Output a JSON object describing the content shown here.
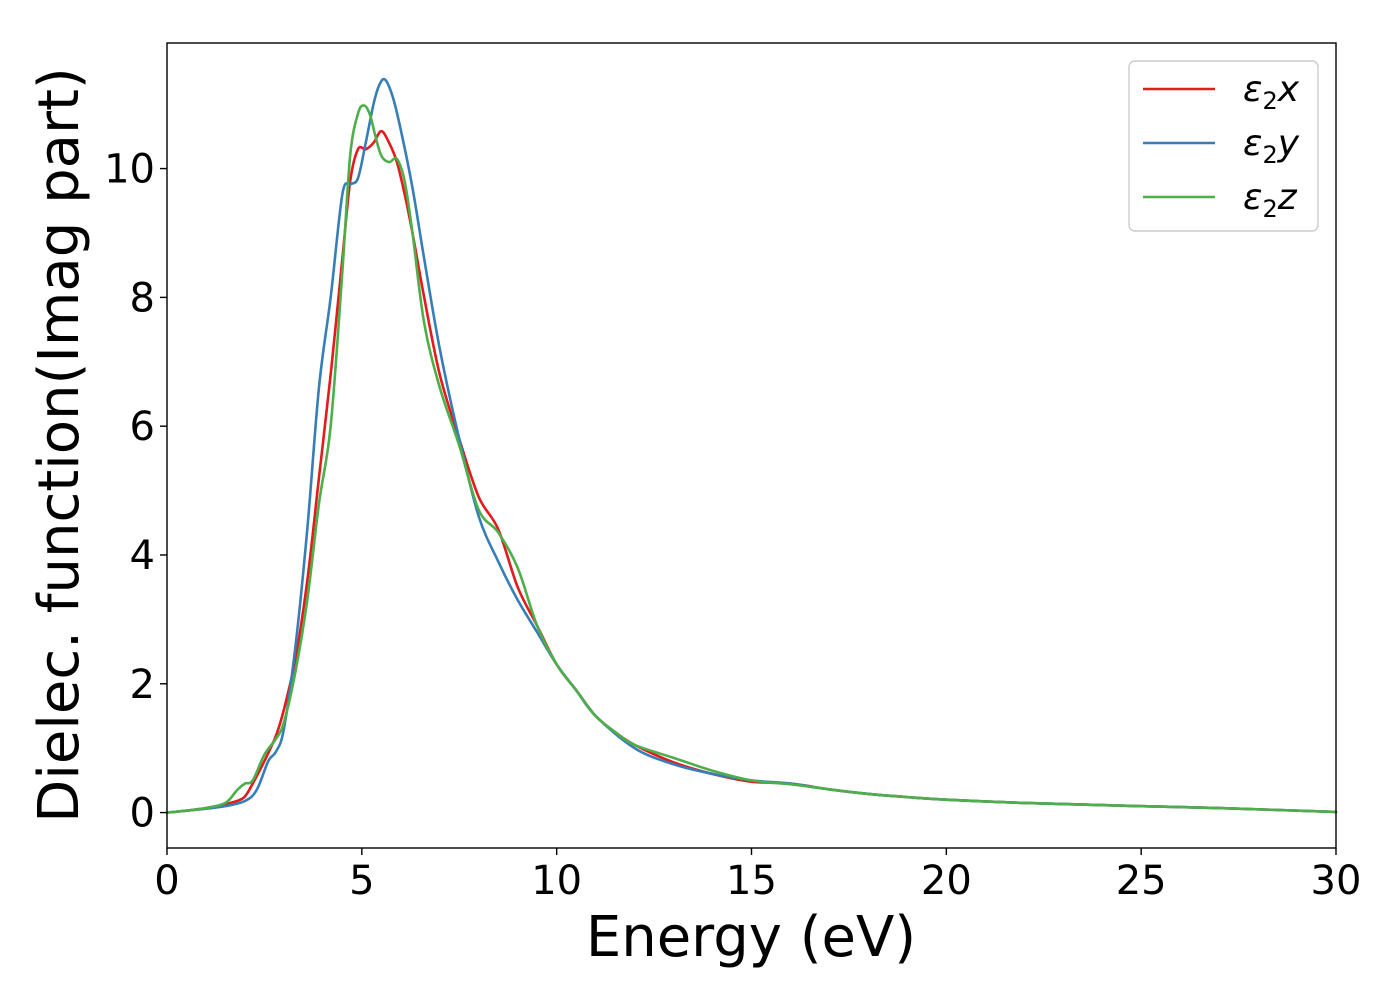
{
  "chart_data": {
    "type": "line",
    "xlabel": "Energy (eV)",
    "ylabel": "Dielec. function(Imag part)",
    "xlim": [
      0,
      30
    ],
    "ylim": [
      -0.55,
      11.95
    ],
    "xticks": [
      0,
      5,
      10,
      15,
      20,
      25,
      30
    ],
    "yticks": [
      0,
      2,
      4,
      6,
      8,
      10
    ],
    "grid": false,
    "legend_position": "top-right",
    "series": [
      {
        "name": "ε₂x",
        "legend": {
          "base": "ε",
          "sub": "2",
          "var": "x"
        },
        "color": "#e41a1c",
        "x": [
          0,
          0.5,
          1,
          1.5,
          1.8,
          2,
          2.2,
          2.5,
          2.8,
          3,
          3.3,
          3.6,
          3.9,
          4.2,
          4.5,
          4.7,
          4.9,
          5.1,
          5.3,
          5.5,
          5.7,
          5.9,
          6.1,
          6.3,
          6.6,
          7,
          7.5,
          8,
          8.5,
          9,
          9.5,
          10,
          10.5,
          11,
          11.5,
          12,
          13,
          14,
          15,
          16,
          17,
          18,
          19,
          20,
          22,
          25,
          27,
          30
        ],
        "y": [
          0,
          0.03,
          0.07,
          0.13,
          0.18,
          0.25,
          0.45,
          0.8,
          1.2,
          1.6,
          2.4,
          3.6,
          5.2,
          6.8,
          8.6,
          9.8,
          10.3,
          10.3,
          10.4,
          10.58,
          10.4,
          10.1,
          9.6,
          9.0,
          8.0,
          6.8,
          5.8,
          4.9,
          4.4,
          3.5,
          2.9,
          2.3,
          1.9,
          1.5,
          1.25,
          1.05,
          0.78,
          0.6,
          0.48,
          0.45,
          0.36,
          0.29,
          0.24,
          0.2,
          0.15,
          0.1,
          0.07,
          0.01
        ]
      },
      {
        "name": "ε₂y",
        "legend": {
          "base": "ε",
          "sub": "2",
          "var": "y"
        },
        "color": "#377eb8",
        "x": [
          0,
          0.5,
          1,
          1.5,
          2,
          2.3,
          2.6,
          2.8,
          3,
          3.3,
          3.6,
          3.9,
          4.2,
          4.5,
          4.7,
          4.9,
          5.1,
          5.3,
          5.45,
          5.6,
          5.8,
          6,
          6.3,
          6.6,
          7,
          7.5,
          8,
          8.5,
          9,
          9.5,
          10,
          10.5,
          11,
          12,
          13,
          14,
          15,
          16,
          17,
          18,
          19,
          20,
          22,
          25,
          27,
          30
        ],
        "y": [
          0,
          0.03,
          0.06,
          0.1,
          0.18,
          0.35,
          0.8,
          0.95,
          1.3,
          2.6,
          4.4,
          6.6,
          8.0,
          9.6,
          9.75,
          9.85,
          10.4,
          11.0,
          11.3,
          11.38,
          11.1,
          10.6,
          9.7,
          8.6,
          7.2,
          5.8,
          4.6,
          3.9,
          3.3,
          2.8,
          2.3,
          1.9,
          1.5,
          1.0,
          0.75,
          0.6,
          0.5,
          0.45,
          0.36,
          0.29,
          0.24,
          0.2,
          0.15,
          0.1,
          0.07,
          0.01
        ]
      },
      {
        "name": "ε₂z",
        "legend": {
          "base": "ε",
          "sub": "2",
          "var": "z"
        },
        "color": "#4daf4a",
        "x": [
          0,
          0.5,
          1,
          1.5,
          1.8,
          2,
          2.2,
          2.5,
          2.8,
          3,
          3.3,
          3.6,
          3.9,
          4.2,
          4.5,
          4.7,
          4.9,
          5.05,
          5.2,
          5.35,
          5.5,
          5.7,
          5.9,
          6.1,
          6.3,
          6.6,
          7,
          7.5,
          8,
          8.5,
          9,
          9.5,
          10,
          10.5,
          11,
          11.5,
          12,
          13,
          14,
          15,
          16,
          17,
          18,
          19,
          20,
          22,
          25,
          27,
          30
        ],
        "y": [
          0,
          0.03,
          0.07,
          0.15,
          0.35,
          0.45,
          0.5,
          0.9,
          1.15,
          1.4,
          2.2,
          3.3,
          4.8,
          6.0,
          8.4,
          10.2,
          10.85,
          10.98,
          10.85,
          10.5,
          10.2,
          10.1,
          10.15,
          9.8,
          9.0,
          7.6,
          6.6,
          5.7,
          4.7,
          4.35,
          3.8,
          2.9,
          2.3,
          1.9,
          1.5,
          1.25,
          1.05,
          0.85,
          0.65,
          0.5,
          0.44,
          0.36,
          0.29,
          0.24,
          0.2,
          0.15,
          0.1,
          0.07,
          0.01
        ]
      }
    ]
  }
}
